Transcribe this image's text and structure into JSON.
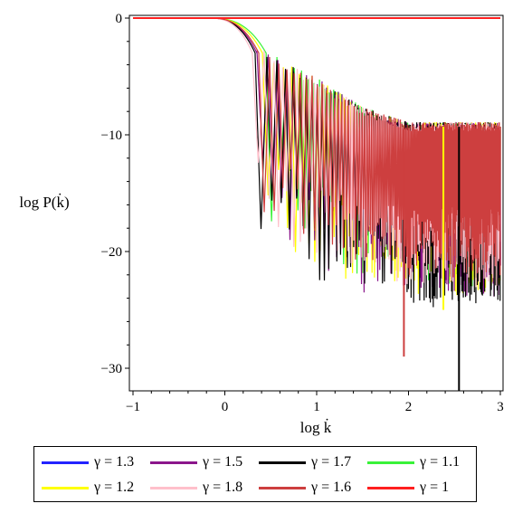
{
  "chart_data": {
    "type": "line",
    "xlabel": "log k̇",
    "ylabel": "log P(k̇)",
    "xlim": [
      -1,
      3
    ],
    "ylim": [
      -32,
      0.5
    ],
    "xticks": [
      -1,
      0,
      1,
      2,
      3
    ],
    "yticks": [
      0,
      -10,
      -20,
      -30
    ],
    "xtick_labels": [
      "−1",
      "0",
      "1",
      "2",
      "3"
    ],
    "ytick_labels": [
      "0",
      "−10",
      "−20",
      "−30"
    ],
    "grid": false,
    "legend_position": "bottom",
    "series": [
      {
        "name": "γ = 1.3",
        "color": "#2323ff",
        "cutoff": null,
        "drop_depth": 0
      },
      {
        "name": "γ = 1.5",
        "color": "#8b168b",
        "cutoff": 0.4,
        "drop_depth": 16
      },
      {
        "name": "γ = 1.7",
        "color": "#000000",
        "cutoff": 0.38,
        "drop_depth": 17
      },
      {
        "name": "γ = 1.1",
        "color": "#39f239",
        "cutoff": 0.5,
        "drop_depth": 15
      },
      {
        "name": "γ = 1.2",
        "color": "#ffff00",
        "cutoff": 0.46,
        "drop_depth": 16
      },
      {
        "name": "γ = 1.8",
        "color": "#ffc0cb",
        "cutoff": 0.35,
        "drop_depth": 15
      },
      {
        "name": "γ = 1.6",
        "color": "#cd3f3f",
        "cutoff": 0.42,
        "drop_depth": 14
      },
      {
        "name": "γ = 1",
        "color": "#ff2020",
        "cutoff": null,
        "drop_depth": 0
      }
    ],
    "envelope": {
      "description_values": [
        {
          "x": 0.4,
          "y": -3
        },
        {
          "x": 1.0,
          "y": -5.5
        },
        {
          "x": 1.5,
          "y": -8
        },
        {
          "x": 2.0,
          "y": -9.3
        },
        {
          "x": 3.0,
          "y": -9.3
        }
      ]
    },
    "notable_drops": [
      {
        "x": 1.95,
        "y": -29,
        "series": "γ = 1.6"
      },
      {
        "x": 2.55,
        "y": -32,
        "series": "γ = 1.7"
      },
      {
        "x": 2.38,
        "y": -25,
        "series": "γ = 1.2"
      },
      {
        "x": 1.38,
        "y": -21,
        "series": "γ = 1.8"
      }
    ]
  }
}
